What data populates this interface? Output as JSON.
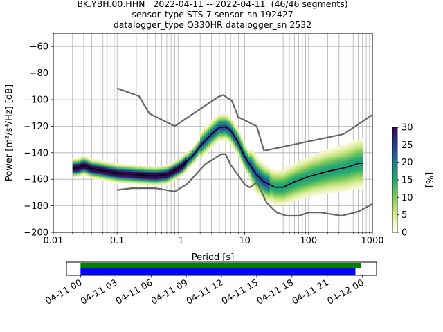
{
  "title_lines": [
    "BK.YBH.00.HHN   2022-04-11 -- 2022-04-11  (46/46 segments)",
    "sensor_type STS-7 sensor_sn 192427",
    "datalogger_type Q330HR datalogger_sn 2532"
  ],
  "colors": {
    "model": "#666666",
    "mean": "#000000",
    "grid": "#b0b0b0",
    "coverage_data": "#008000",
    "coverage_gaps": "#0000ff"
  },
  "chart_data": [
    {
      "type": "heatmap",
      "title": "BK.YBH.00.HHN   2022-04-11 -- 2022-04-11  (46/46 segments)",
      "xlabel": "Period [s]",
      "ylabel": "Power [m²/s⁴/Hz] [dB]",
      "xscale": "log",
      "xlim": [
        0.01,
        1000
      ],
      "ylim": [
        -200,
        -50
      ],
      "x_ticks": [
        "0.01",
        "0.1",
        "1",
        "10",
        "100",
        "1000"
      ],
      "x_tick_values": [
        0.01,
        0.1,
        1,
        10,
        100,
        1000
      ],
      "y_ticks": [
        "−200",
        "−180",
        "−160",
        "−140",
        "−120",
        "−100",
        "−80",
        "−60"
      ],
      "y_tick_values": [
        -200,
        -180,
        -160,
        -140,
        -120,
        -100,
        -80,
        -60
      ],
      "grid": true,
      "colorbar": {
        "label": "[%]",
        "range": [
          0,
          30
        ],
        "ticks": [
          "0",
          "5",
          "10",
          "15",
          "20",
          "25",
          "30"
        ],
        "tick_values": [
          0,
          5,
          10,
          15,
          20,
          25,
          30
        ],
        "colormap": "pqlx-like (white → yellow-green → green → teal → blue → dark purple)"
      },
      "series": [
        {
          "role": "high-noise-model",
          "points": [
            [
              0.1,
              -91.5
            ],
            [
              0.22,
              -97.4
            ],
            [
              0.32,
              -110.5
            ],
            [
              0.8,
              -120
            ],
            [
              3.8,
              -98
            ],
            [
              4.6,
              -96.5
            ],
            [
              6.3,
              -101
            ],
            [
              7.9,
              -113.2
            ],
            [
              15.4,
              -120
            ],
            [
              20,
              -138.5
            ],
            [
              354.8,
              -126
            ],
            [
              1000,
              -111.5
            ]
          ]
        },
        {
          "role": "low-noise-model",
          "points": [
            [
              0.1,
              -168
            ],
            [
              0.17,
              -166.7
            ],
            [
              0.4,
              -166.7
            ],
            [
              0.8,
              -169.2
            ],
            [
              1.24,
              -163.7
            ],
            [
              2.4,
              -148.6
            ],
            [
              4.3,
              -141.1
            ],
            [
              5,
              -141.1
            ],
            [
              6,
              -149
            ],
            [
              10,
              -163.8
            ],
            [
              12,
              -166.2
            ],
            [
              15.6,
              -162.1
            ],
            [
              21.9,
              -177.5
            ],
            [
              31.6,
              -185
            ],
            [
              45,
              -187.5
            ],
            [
              70,
              -187.5
            ],
            [
              101,
              -185
            ],
            [
              154,
              -185
            ],
            [
              328,
              -187.5
            ],
            [
              600,
              -184.4
            ],
            [
              1000,
              -178.5
            ]
          ]
        },
        {
          "role": "mean",
          "points": [
            [
              0.02,
              -151.5
            ],
            [
              0.025,
              -151.2
            ],
            [
              0.03,
              -149.5
            ],
            [
              0.04,
              -152
            ],
            [
              0.06,
              -153.5
            ],
            [
              0.1,
              -155.5
            ],
            [
              0.2,
              -156.5
            ],
            [
              0.4,
              -157.5
            ],
            [
              0.6,
              -156.5
            ],
            [
              0.8,
              -153.5
            ],
            [
              1,
              -150.5
            ],
            [
              1.5,
              -143
            ],
            [
              2,
              -135
            ],
            [
              3,
              -126
            ],
            [
              4,
              -121
            ],
            [
              5,
              -120.5
            ],
            [
              6,
              -123
            ],
            [
              8,
              -133
            ],
            [
              10,
              -143
            ],
            [
              15,
              -156
            ],
            [
              20,
              -162
            ],
            [
              30,
              -166
            ],
            [
              40,
              -166
            ],
            [
              60,
              -162
            ],
            [
              100,
              -158
            ],
            [
              200,
              -154
            ],
            [
              400,
              -151
            ],
            [
              600,
              -148
            ],
            [
              700,
              -148
            ]
          ]
        }
      ],
      "histogram_band": {
        "description": "probability density of PSD values",
        "period_range": [
          0.02,
          700
        ],
        "center_percent_max": 30
      }
    },
    {
      "type": "timeline",
      "x_ticks": [
        "04-11 00",
        "04-11 03",
        "04-11 06",
        "04-11 09",
        "04-11 12",
        "04-11 15",
        "04-11 18",
        "04-11 21",
        "04-12 00"
      ],
      "x_tick_hours": [
        0,
        3,
        6,
        9,
        12,
        15,
        18,
        21,
        24
      ],
      "xlim_hours": [
        -1.2,
        25.2
      ],
      "bars": [
        {
          "role": "data",
          "start_hour": 0,
          "end_hour": 23.9
        },
        {
          "role": "processed",
          "start_hour": 0,
          "end_hour": 23.4
        }
      ]
    }
  ]
}
